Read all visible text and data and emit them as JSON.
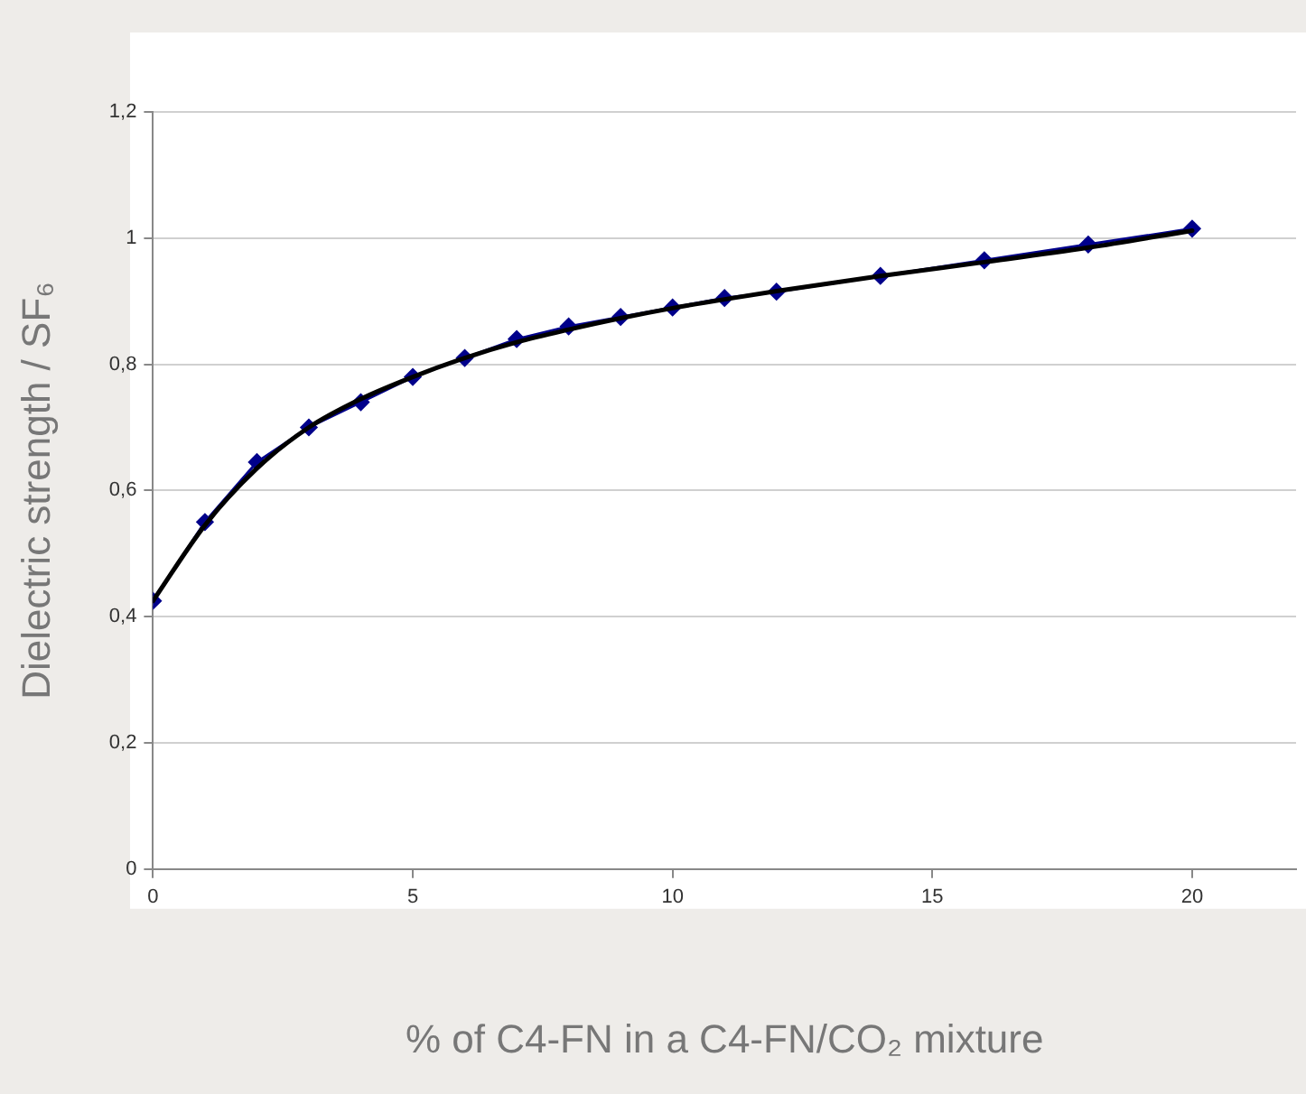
{
  "chart_data": {
    "type": "line",
    "xlabel": "% of C4-FN in a C4-FN/CO₂ mixture",
    "ylabel": "Dielectric strength / SF₆",
    "xlim": [
      0,
      22
    ],
    "xticks": [
      0,
      5,
      10,
      15,
      20
    ],
    "ylim": [
      0,
      1.2
    ],
    "yticks": [
      0,
      {
        "value": 0.2,
        "label": "0,2"
      },
      {
        "value": 0.4,
        "label": "0,4"
      },
      {
        "value": 0.6,
        "label": "0,6"
      },
      {
        "value": 0.8,
        "label": "0,8"
      },
      1,
      {
        "value": 1.2,
        "label": "1,2"
      }
    ],
    "grid": "y",
    "legend": false,
    "marker": "diamond",
    "series": [
      {
        "color": "#00008b",
        "x": [
          0,
          1,
          2,
          3,
          4,
          5,
          6,
          7,
          8,
          9,
          10,
          11,
          12,
          14,
          16,
          18,
          20
        ],
        "values": [
          0.425,
          0.55,
          0.645,
          0.7,
          0.74,
          0.78,
          0.81,
          0.84,
          0.86,
          0.875,
          0.89,
          0.905,
          0.915,
          0.94,
          0.965,
          0.99,
          1.015
        ]
      },
      {
        "color": "#000000",
        "marker": "none",
        "x": [
          0,
          1,
          2,
          3,
          4,
          5,
          6,
          7,
          8,
          9,
          10,
          11,
          12,
          14,
          16,
          18,
          20
        ],
        "values": [
          0.425,
          0.545,
          0.635,
          0.7,
          0.745,
          0.78,
          0.81,
          0.835,
          0.855,
          0.873,
          0.889,
          0.903,
          0.916,
          0.94,
          0.962,
          0.985,
          1.012
        ]
      }
    ]
  }
}
